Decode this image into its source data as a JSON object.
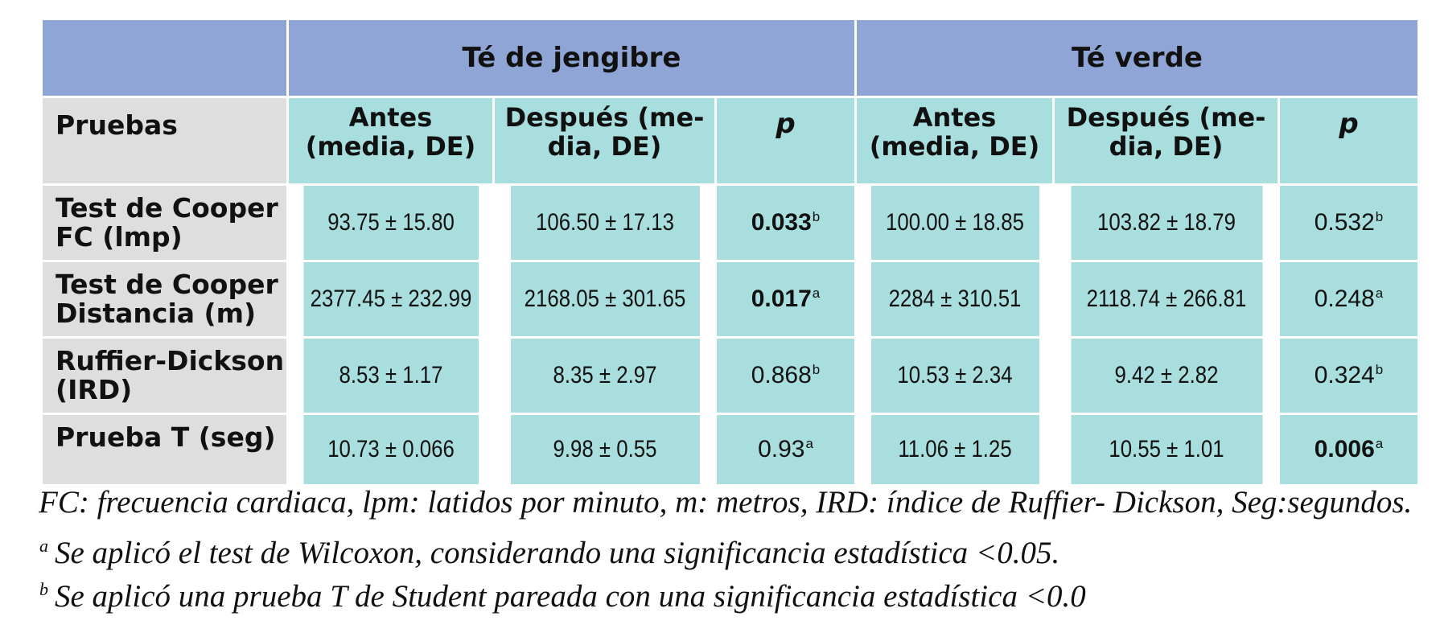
{
  "groups": {
    "ginger": "Té de jengibre",
    "green": "Té verde"
  },
  "headers": {
    "tests": "Pruebas",
    "antes_line1": "Antes",
    "antes_line2": "(media, DE)",
    "despues_line1": "Después (me-",
    "despues_line2": "dia, DE)",
    "p": "p"
  },
  "rows": [
    {
      "label_line1": "Test de Cooper",
      "label_line2": "FC (lmp)",
      "ginger_antes": "93.75 ± 15.80",
      "ginger_despues": "106.50 ± 17.13",
      "ginger_p": "0.033",
      "ginger_p_sup": "b",
      "ginger_p_bold": true,
      "green_antes": "100.00 ± 18.85",
      "green_despues": "103.82 ± 18.79",
      "green_p": "0.532",
      "green_p_sup": "b",
      "green_p_bold": false
    },
    {
      "label_line1": "Test de Cooper",
      "label_line2": "Distancia (m)",
      "ginger_antes": "2377.45  ± 232.99",
      "ginger_despues": "2168.05 ± 301.65",
      "ginger_p": "0.017",
      "ginger_p_sup": "a",
      "ginger_p_bold": true,
      "green_antes": "2284  ± 310.51",
      "green_despues": "2118.74  ± 266.81",
      "green_p": "0.248",
      "green_p_sup": "a",
      "green_p_bold": false
    },
    {
      "label_line1": "Ruffier-Dickson",
      "label_line2": "(IRD)",
      "ginger_antes": "8.53 ± 1.17",
      "ginger_despues": "8.35 ± 2.97",
      "ginger_p": "0.868",
      "ginger_p_sup": "b",
      "ginger_p_bold": false,
      "green_antes": "10.53 ± 2.34",
      "green_despues": "9.42 ± 2.82",
      "green_p": "0.324",
      "green_p_sup": "b",
      "green_p_bold": false
    },
    {
      "label_line1": "Prueba T (seg)",
      "label_line2": "",
      "ginger_antes": "10.73 ± 0.066",
      "ginger_despues": "9.98 ± 0.55",
      "ginger_p": "0.93",
      "ginger_p_sup": "a",
      "ginger_p_bold": false,
      "green_antes": "11.06 ± 1.25",
      "green_despues": "10.55 ± 1.01",
      "green_p": "0.006",
      "green_p_sup": "a",
      "green_p_bold": true
    }
  ],
  "notes": {
    "line1": "FC: frecuencia cardiaca, lpm: latidos por minuto, m: metros, IRD: índice de Ruffier- Dickson, Seg:segundos.",
    "line2_sup": "a",
    "line2": "Se aplicó el test de Wilcoxon, considerando una significancia estadística <0.05.",
    "line3_sup": "b",
    "line3": "Se aplicó una prueba T de Student pareada con una significancia estadística <0.0"
  },
  "colors": {
    "group_header": "#8fa5d6",
    "cell_teal": "#a8dedd",
    "cell_gray": "#dedede"
  }
}
